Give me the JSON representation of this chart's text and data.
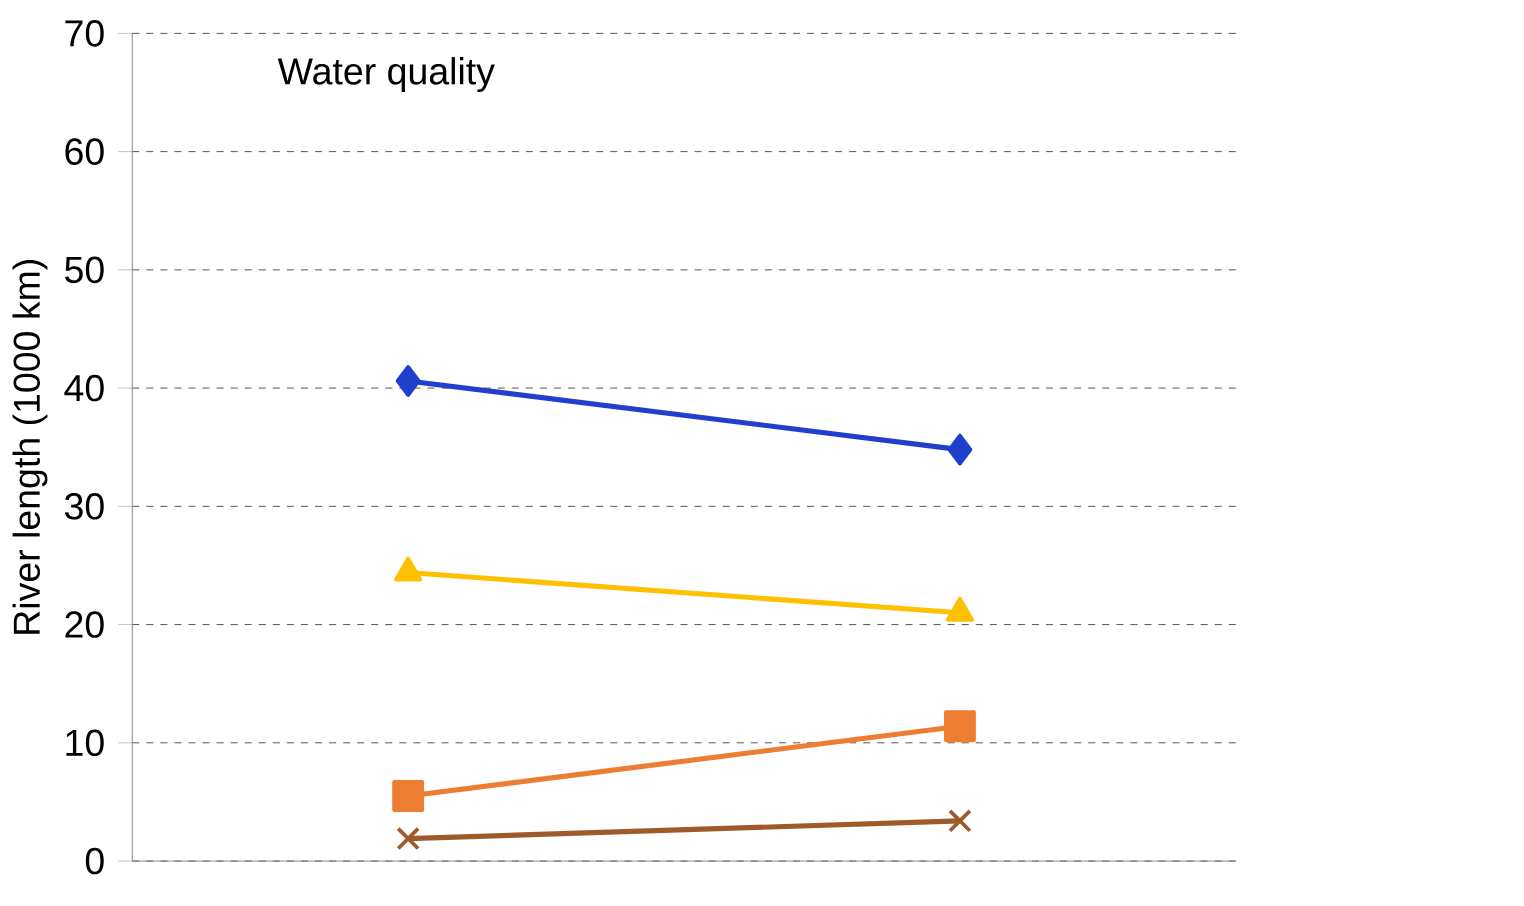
{
  "chart_data": {
    "type": "line",
    "title": "Water quality",
    "ylabel": "River length    (1000 km)",
    "categories": [
      null,
      null
    ],
    "series": [
      {
        "color": "#1f3fcc",
        "marker": "diamond",
        "values": [
          40.6,
          34.8
        ]
      },
      {
        "color": "#ffc000",
        "marker": "triangle",
        "values": [
          24.4,
          21.0
        ]
      },
      {
        "color": "#ed7d31",
        "marker": "square",
        "values": [
          5.5,
          11.4
        ]
      },
      {
        "color": "#9e5a2b",
        "marker": "cross",
        "values": [
          1.9,
          3.4
        ]
      }
    ],
    "ylim": [
      0,
      70
    ],
    "yticks": [
      0,
      10,
      20,
      30,
      40,
      50,
      60,
      70
    ],
    "grid": "y"
  }
}
